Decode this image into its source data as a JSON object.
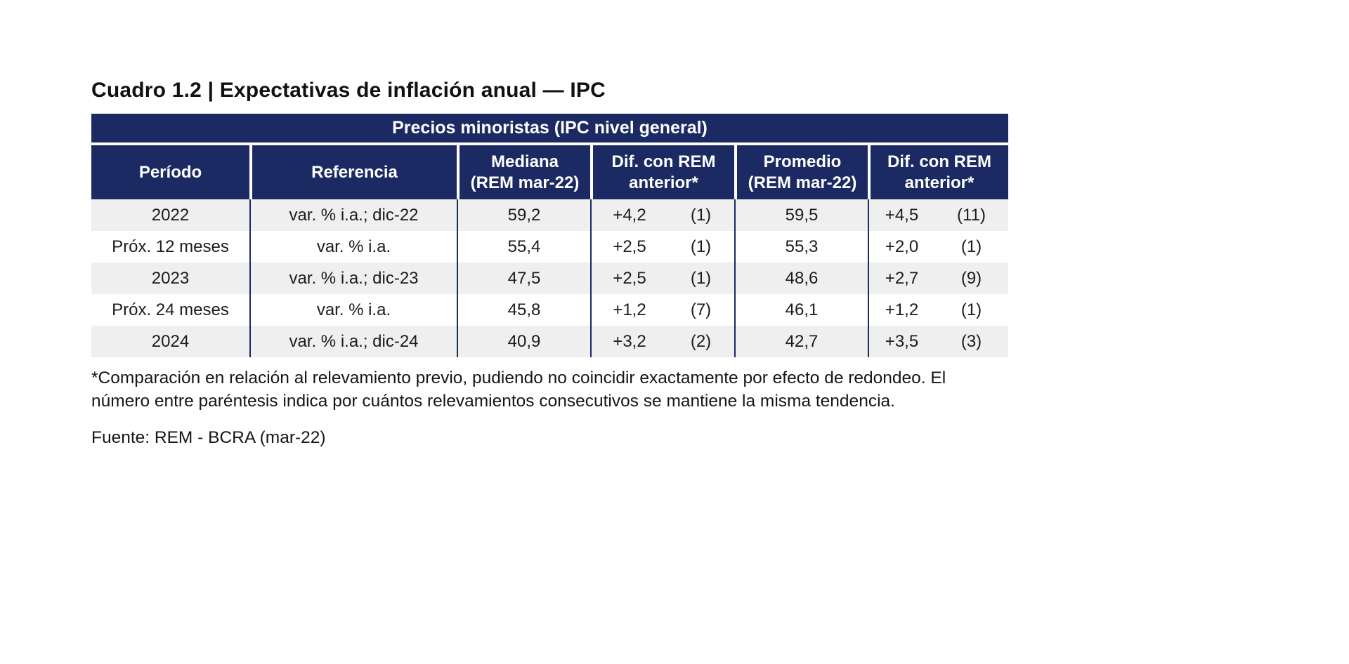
{
  "page": {
    "title": "Cuadro 1.2 | Expectativas de inflación anual — IPC",
    "footnote": "*Comparación en relación al relevamiento previo, pudiendo no coincidir exactamente por efecto de redondeo. El número entre paréntesis indica por cuántos relevamientos consecutivos se mantiene la misma tendencia.",
    "source": "Fuente: REM - BCRA (mar-22)"
  },
  "colors": {
    "header_navy": "#1b2a63",
    "row_alt_gray": "#efefef",
    "header_text": "#ffffff",
    "body_text": "#1c1c1c"
  },
  "table": {
    "band_title": "Precios minoristas (IPC nivel general)",
    "headers": {
      "period": "Período",
      "reference": "Referencia",
      "median_line1": "Mediana",
      "median_line2": "(REM mar-22)",
      "diff1_line1": "Dif. con REM",
      "diff1_line2": "anterior*",
      "average_line1": "Promedio",
      "average_line2": "(REM mar-22)",
      "diff2_line1": "Dif. con REM",
      "diff2_line2": "anterior*"
    },
    "rows": [
      {
        "period": "2022",
        "reference": "var. % i.a.; dic-22",
        "median": "59,2",
        "diff1_value": "+4,2",
        "diff1_count": "(1)",
        "average": "59,5",
        "diff2_value": "+4,5",
        "diff2_count": "(11)"
      },
      {
        "period": "Próx. 12 meses",
        "reference": "var. % i.a.",
        "median": "55,4",
        "diff1_value": "+2,5",
        "diff1_count": "(1)",
        "average": "55,3",
        "diff2_value": "+2,0",
        "diff2_count": "(1)"
      },
      {
        "period": "2023",
        "reference": "var. % i.a.; dic-23",
        "median": "47,5",
        "diff1_value": "+2,5",
        "diff1_count": "(1)",
        "average": "48,6",
        "diff2_value": "+2,7",
        "diff2_count": "(9)"
      },
      {
        "period": "Próx. 24 meses",
        "reference": "var. % i.a.",
        "median": "45,8",
        "diff1_value": "+1,2",
        "diff1_count": "(7)",
        "average": "46,1",
        "diff2_value": "+1,2",
        "diff2_count": "(1)"
      },
      {
        "period": "2024",
        "reference": "var. % i.a.; dic-24",
        "median": "40,9",
        "diff1_value": "+3,2",
        "diff1_count": "(2)",
        "average": "42,7",
        "diff2_value": "+3,5",
        "diff2_count": "(3)"
      }
    ]
  }
}
